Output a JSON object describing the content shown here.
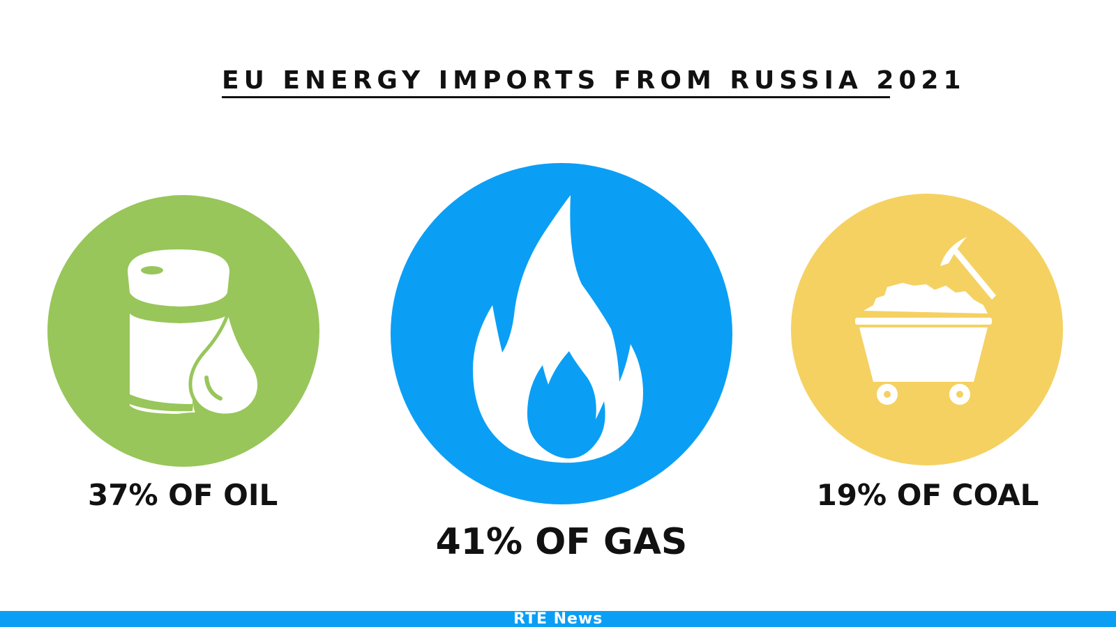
{
  "title": "EU ENERGY IMPORTS FROM RUSSIA 2021",
  "items": [
    {
      "label": "37% OF OIL",
      "value": 37,
      "color": "#98c65a",
      "icon": "oil-barrel-drop-icon"
    },
    {
      "label": "41% OF GAS",
      "value": 41,
      "color": "#0a9ff5",
      "icon": "gas-flame-icon"
    },
    {
      "label": "19% OF COAL",
      "value": 19,
      "color": "#f5d161",
      "icon": "coal-cart-pickaxe-icon"
    }
  ],
  "footer": {
    "brand": "RTÉ News",
    "color": "#0a9ff5"
  }
}
